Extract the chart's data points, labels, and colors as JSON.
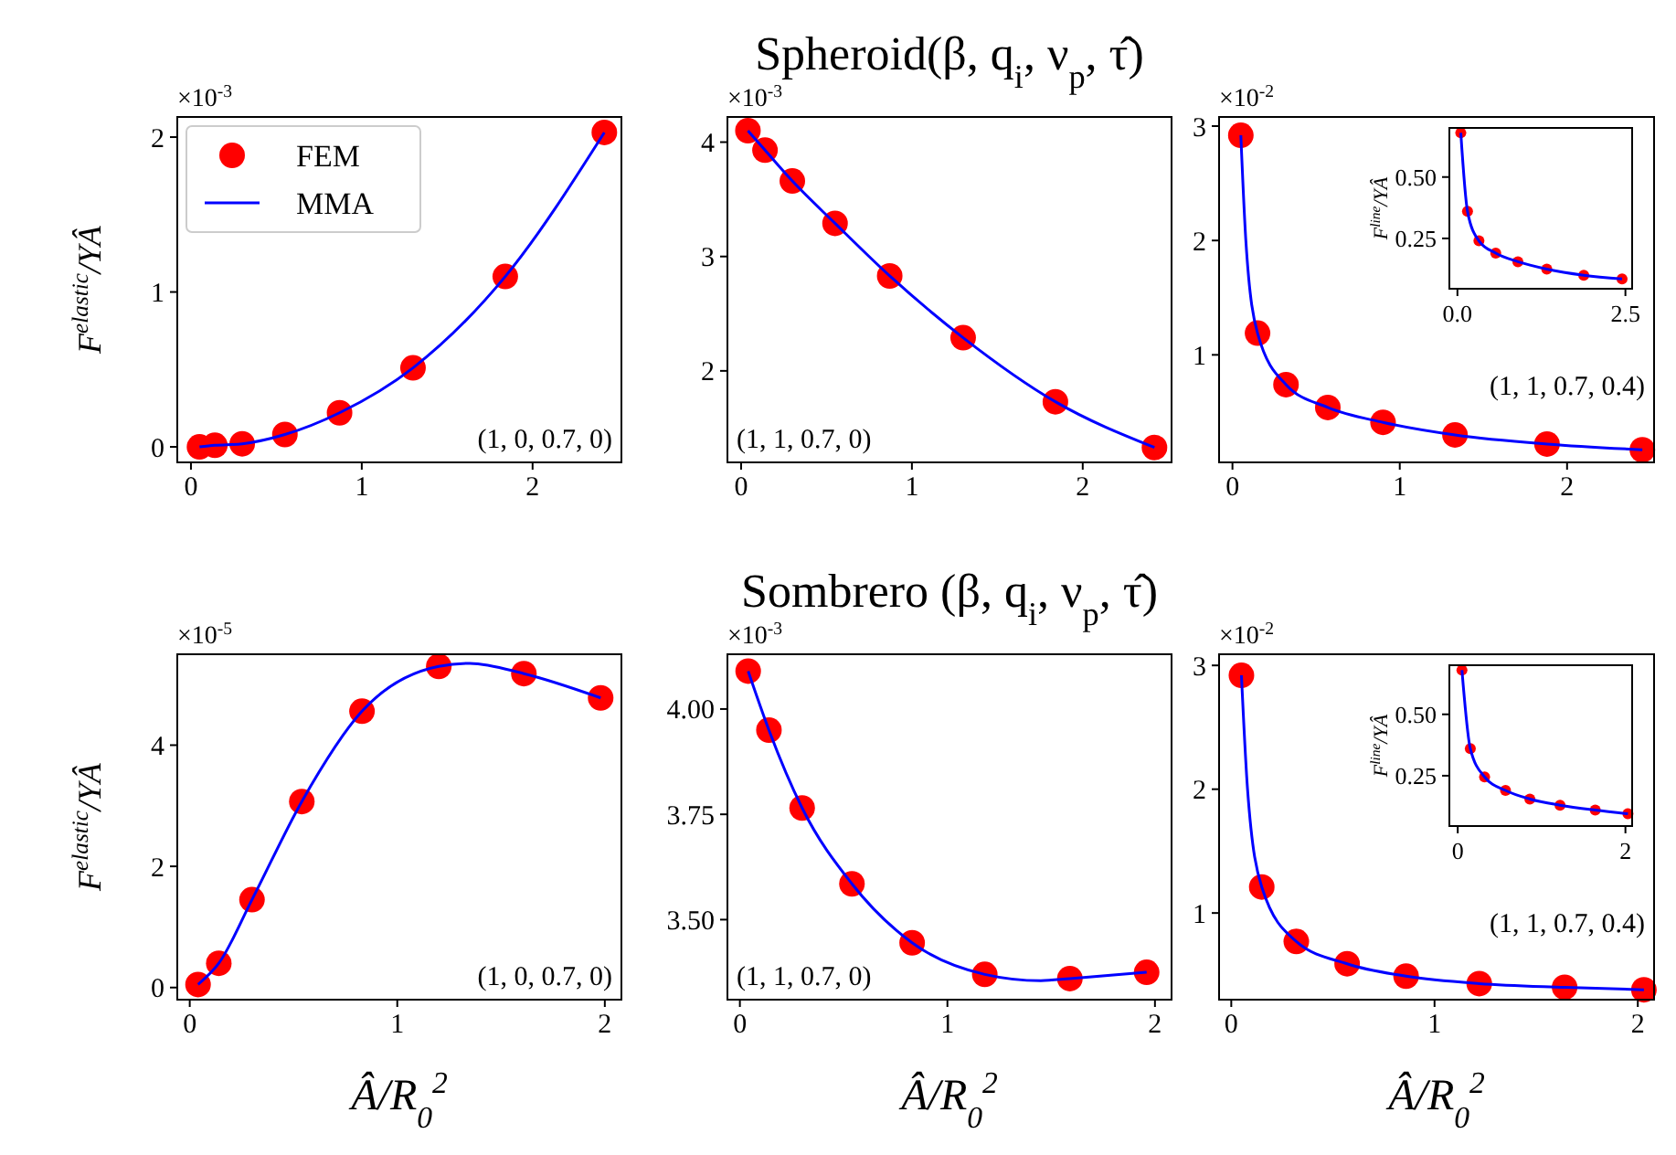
{
  "chart_data": [
    {
      "type": "scatter",
      "ylabel": "F$^{elastic}$/YÂ",
      "annotations": [
        "×10$^{-3}$",
        "(1, 0, 0.7, 0)"
      ],
      "xlim": [
        -0.08,
        2.52
      ],
      "xticks": [
        0,
        1,
        2
      ],
      "ylim": [
        -0.1,
        2.13
      ],
      "yticks": [
        0,
        1,
        2
      ],
      "legend": "top left",
      "series": [
        {
          "name": "FEM",
          "type": "scatter",
          "marker": "circle",
          "color": "#ff0000",
          "x": [
            0.05,
            0.14,
            0.3,
            0.55,
            0.87,
            1.3,
            1.84,
            2.42
          ],
          "values": [
            0.0,
            0.01,
            0.02,
            0.08,
            0.22,
            0.51,
            1.1,
            2.03
          ]
        },
        {
          "name": "MMA",
          "type": "line",
          "marker": "none",
          "color": "#0000ff",
          "x": [
            0.05,
            0.14,
            0.3,
            0.55,
            0.87,
            1.3,
            1.84,
            2.42
          ],
          "values": [
            0.0,
            0.01,
            0.02,
            0.08,
            0.22,
            0.51,
            1.1,
            2.03
          ]
        }
      ]
    },
    {
      "type": "scatter",
      "title": "Spheroid(β, q$_{i}$, ν$_{p}$, τ̂)",
      "annotations": [
        "×10$^{-3}$",
        "(1, 1, 0.7, 0)"
      ],
      "xlim": [
        -0.08,
        2.52
      ],
      "xticks": [
        0,
        1,
        2
      ],
      "ylim": [
        1.2,
        4.22
      ],
      "yticks": [
        2,
        3,
        4
      ],
      "series": [
        {
          "type": "scatter",
          "marker": "circle",
          "color": "#ff0000",
          "x": [
            0.04,
            0.14,
            0.3,
            0.55,
            0.87,
            1.3,
            1.84,
            2.42
          ],
          "values": [
            4.1,
            3.93,
            3.66,
            3.29,
            2.83,
            2.29,
            1.73,
            1.33
          ]
        },
        {
          "type": "line",
          "marker": "none",
          "color": "#0000ff",
          "x": [
            0.04,
            0.14,
            0.3,
            0.55,
            0.87,
            1.3,
            1.84,
            2.42
          ],
          "values": [
            4.1,
            3.93,
            3.66,
            3.29,
            2.83,
            2.29,
            1.73,
            1.33
          ]
        }
      ]
    },
    {
      "type": "scatter",
      "annotations": [
        "×10$^{-2}$",
        "(1, 1, 0.7, 0.4)"
      ],
      "xlim": [
        -0.08,
        2.52
      ],
      "xticks": [
        0,
        1,
        2
      ],
      "ylim": [
        0.06,
        3.08
      ],
      "yticks": [
        1,
        2,
        3
      ],
      "series": [
        {
          "type": "scatter",
          "marker": "circle",
          "color": "#ff0000",
          "x": [
            0.05,
            0.15,
            0.32,
            0.57,
            0.9,
            1.33,
            1.88,
            2.45
          ],
          "values": [
            2.92,
            1.19,
            0.74,
            0.54,
            0.41,
            0.3,
            0.22,
            0.17
          ]
        },
        {
          "type": "line",
          "marker": "none",
          "color": "#0000ff",
          "x": [
            0.05,
            0.08,
            0.15,
            0.32,
            0.57,
            0.9,
            1.33,
            1.88,
            2.45
          ],
          "values": [
            2.92,
            2.0,
            1.19,
            0.74,
            0.54,
            0.41,
            0.3,
            0.22,
            0.17
          ]
        }
      ]
    },
    {
      "type": "scatter",
      "ylabel": "F$^{line}$/YÂ",
      "xlim": [
        -0.12,
        2.6
      ],
      "xticks": [
        {
          "value": 0,
          "label": "0.0"
        },
        {
          "value": 2.5,
          "label": "2.5"
        }
      ],
      "ylim": [
        0.045,
        0.7
      ],
      "yticks": [
        0.25,
        {
          "value": 0.5,
          "label": "0.50"
        }
      ],
      "series": [
        {
          "type": "scatter",
          "marker": "circle",
          "color": "#ff0000",
          "x": [
            0.05,
            0.15,
            0.32,
            0.57,
            0.9,
            1.33,
            1.88,
            2.45
          ],
          "values": [
            0.68,
            0.36,
            0.24,
            0.19,
            0.155,
            0.125,
            0.1,
            0.085
          ]
        },
        {
          "type": "line",
          "marker": "none",
          "color": "#0000ff",
          "x": [
            0.05,
            0.15,
            0.32,
            0.57,
            0.9,
            1.33,
            1.88,
            2.45
          ],
          "values": [
            0.68,
            0.36,
            0.24,
            0.19,
            0.155,
            0.125,
            0.1,
            0.085
          ]
        }
      ]
    },
    {
      "type": "scatter",
      "ylabel": "F$^{elastic}$/YÂ",
      "xlabel": "Â/R$_{0}$$^{2}$",
      "annotations": [
        "×10$^{-5}$",
        "(1, 0, 0.7, 0)"
      ],
      "xlim": [
        -0.06,
        2.08
      ],
      "xticks": [
        0,
        1,
        2
      ],
      "ylim": [
        -0.2,
        5.5
      ],
      "yticks": [
        0,
        2,
        4
      ],
      "series": [
        {
          "type": "scatter",
          "marker": "circle",
          "color": "#ff0000",
          "x": [
            0.04,
            0.14,
            0.3,
            0.54,
            0.83,
            1.2,
            1.61,
            1.98
          ],
          "values": [
            0.05,
            0.4,
            1.45,
            3.07,
            4.56,
            5.3,
            5.18,
            4.78
          ]
        },
        {
          "type": "line",
          "marker": "none",
          "color": "#0000ff",
          "x": [
            0.04,
            0.14,
            0.3,
            0.54,
            0.83,
            1.2,
            1.35,
            1.61,
            1.98
          ],
          "values": [
            0.05,
            0.4,
            1.45,
            3.07,
            4.56,
            5.3,
            5.35,
            5.18,
            4.78
          ]
        }
      ]
    },
    {
      "type": "scatter",
      "title": "Sombrero (β, q$_{i}$, ν$_{p}$, τ̂)",
      "xlabel": "Â/R$_{0}$$^{2}$",
      "annotations": [
        "×10$^{-3}$",
        "(1, 1, 0.7, 0)"
      ],
      "xlim": [
        -0.06,
        2.08
      ],
      "xticks": [
        0,
        1,
        2
      ],
      "ylim": [
        3.31,
        4.13
      ],
      "yticks": [
        {
          "value": 3.5,
          "label": "3.50"
        },
        3.75,
        {
          "value": 4,
          "label": "4.00"
        }
      ],
      "series": [
        {
          "type": "scatter",
          "marker": "circle",
          "color": "#ff0000",
          "x": [
            0.04,
            0.14,
            0.3,
            0.54,
            0.83,
            1.18,
            1.59,
            1.96
          ],
          "values": [
            4.09,
            3.95,
            3.765,
            3.585,
            3.445,
            3.37,
            3.36,
            3.375
          ]
        },
        {
          "type": "line",
          "marker": "none",
          "color": "#0000ff",
          "x": [
            0.04,
            0.14,
            0.3,
            0.54,
            0.83,
            1.18,
            1.45,
            1.59,
            1.96
          ],
          "values": [
            4.09,
            3.95,
            3.765,
            3.585,
            3.445,
            3.37,
            3.355,
            3.36,
            3.375
          ]
        }
      ]
    },
    {
      "type": "scatter",
      "xlabel": "Â/R$_{0}$$^{2}$",
      "annotations": [
        "×10$^{-2}$",
        "(1, 1, 0.7, 0.4)"
      ],
      "xlim": [
        -0.06,
        2.08
      ],
      "xticks": [
        0,
        1,
        2
      ],
      "ylim": [
        0.3,
        3.09
      ],
      "yticks": [
        1,
        2,
        3
      ],
      "series": [
        {
          "type": "scatter",
          "marker": "circle",
          "color": "#ff0000",
          "x": [
            0.05,
            0.15,
            0.32,
            0.57,
            0.86,
            1.22,
            1.64,
            2.03
          ],
          "values": [
            2.92,
            1.21,
            0.77,
            0.59,
            0.49,
            0.43,
            0.4,
            0.38
          ]
        },
        {
          "type": "line",
          "marker": "none",
          "color": "#0000ff",
          "x": [
            0.05,
            0.08,
            0.15,
            0.32,
            0.57,
            0.86,
            1.22,
            1.64,
            2.03
          ],
          "values": [
            2.92,
            2.0,
            1.21,
            0.77,
            0.59,
            0.49,
            0.43,
            0.4,
            0.38
          ]
        }
      ]
    },
    {
      "type": "scatter",
      "ylabel": "F$^{line}$/YÂ",
      "xlim": [
        -0.1,
        2.08
      ],
      "xticks": [
        0,
        2
      ],
      "ylim": [
        0.045,
        0.7
      ],
      "yticks": [
        0.25,
        {
          "value": 0.5,
          "label": "0.50"
        }
      ],
      "series": [
        {
          "type": "scatter",
          "marker": "circle",
          "color": "#ff0000",
          "x": [
            0.05,
            0.15,
            0.32,
            0.57,
            0.86,
            1.22,
            1.64,
            2.03
          ],
          "values": [
            0.68,
            0.36,
            0.245,
            0.19,
            0.155,
            0.13,
            0.11,
            0.095
          ]
        },
        {
          "type": "line",
          "marker": "none",
          "color": "#0000ff",
          "x": [
            0.05,
            0.15,
            0.32,
            0.57,
            0.86,
            1.22,
            1.64,
            2.03
          ],
          "values": [
            0.68,
            0.36,
            0.245,
            0.19,
            0.155,
            0.13,
            0.11,
            0.095
          ]
        }
      ]
    }
  ]
}
